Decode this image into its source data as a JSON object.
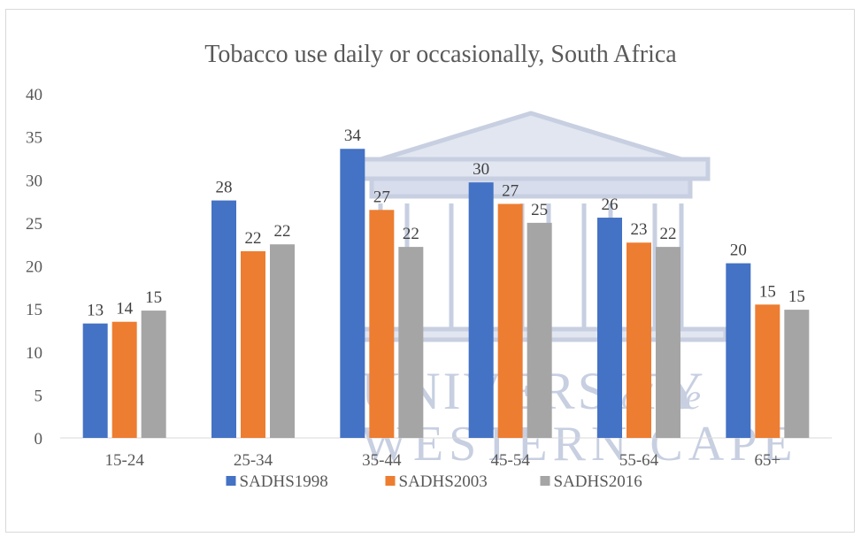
{
  "chart_data": {
    "type": "bar",
    "title": "Tobacco use daily or occasionally, South Africa",
    "categories": [
      "15-24",
      "25-34",
      "35-44",
      "45-54",
      "55-64",
      "65+"
    ],
    "series": [
      {
        "name": "SADHS1998",
        "color": "#4472c4",
        "values": [
          13.3,
          27.6,
          33.6,
          29.7,
          25.6,
          20.3
        ],
        "labels": [
          "13",
          "28",
          "34",
          "30",
          "26",
          "20"
        ]
      },
      {
        "name": "SADHS2003",
        "color": "#ed7d31",
        "values": [
          13.5,
          21.7,
          26.5,
          27.2,
          22.7,
          15.5
        ],
        "labels": [
          "14",
          "22",
          "27",
          "27",
          "23",
          "15"
        ]
      },
      {
        "name": "SADHS2016",
        "color": "#a5a5a5",
        "values": [
          14.8,
          22.5,
          22.2,
          25.0,
          22.2,
          14.9
        ],
        "labels": [
          "15",
          "22",
          "22",
          "25",
          "22",
          "15"
        ]
      }
    ],
    "ylim": [
      0,
      40
    ],
    "yticks": [
      0,
      5,
      10,
      15,
      20,
      25,
      30,
      35,
      40
    ],
    "grid": false,
    "legend": "bottom"
  },
  "watermark": {
    "line1": "UNIVERSITY",
    "line1b": "of the",
    "line2": "WESTERN CAPE",
    "icon": "building-columns-icon"
  }
}
